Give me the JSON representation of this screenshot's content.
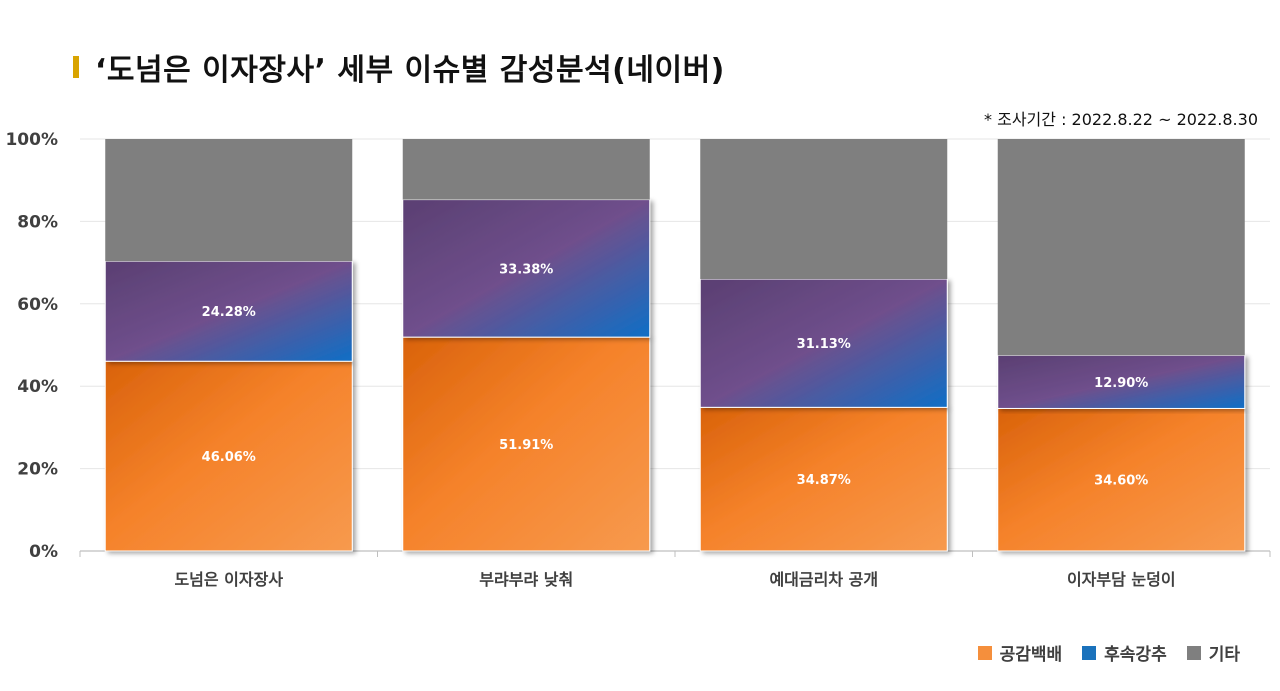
{
  "title": "‘도넘은 이자장사’ 세부 이슈별 감성분석(네이버)",
  "period_note": "* 조사기간 : 2022.8.22 ~ 2022.8.30",
  "colors": {
    "positive": "#f58f3c",
    "negative": "#1a72bc",
    "other": "#7f7f7f",
    "title_accent": "#d9a400"
  },
  "chart_data": {
    "type": "bar",
    "stacked": true,
    "categories": [
      "도넘은 이자장사",
      "부랴부랴 낮춰",
      "예대금리차 공개",
      "이자부담 눈덩이"
    ],
    "series": [
      {
        "name": "공감백배",
        "values": [
          46.06,
          51.91,
          34.87,
          34.6
        ],
        "labels": [
          "46.06%",
          "51.91%",
          "34.87%",
          "34.60%"
        ]
      },
      {
        "name": "후속강추",
        "values": [
          24.28,
          33.38,
          31.13,
          12.9
        ],
        "labels": [
          "24.28%",
          "33.38%",
          "31.13%",
          "12.90%"
        ]
      },
      {
        "name": "기타",
        "values": [
          29.66,
          14.71,
          34.0,
          52.5
        ]
      }
    ],
    "y_ticks": [
      "0%",
      "20%",
      "40%",
      "60%",
      "80%",
      "100%"
    ],
    "ylim": [
      0,
      100
    ],
    "legend_position": "bottom-right",
    "grid": true
  }
}
